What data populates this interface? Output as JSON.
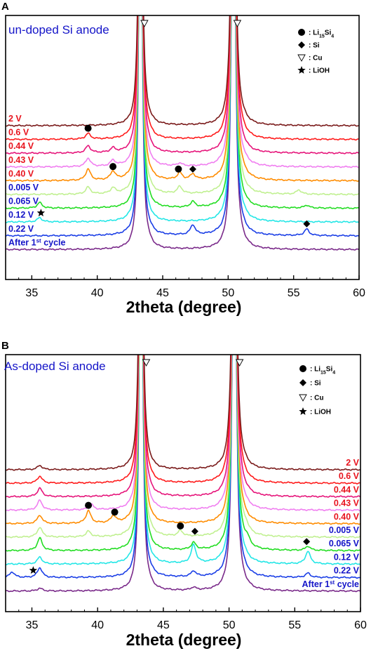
{
  "chart_data": [
    {
      "type": "line",
      "panel": "A",
      "title": "un-doped Si anode",
      "xlabel": "2theta (degree)",
      "ylabel": "",
      "xlim": [
        33,
        60
      ],
      "xticks": [
        35,
        40,
        45,
        50,
        55,
        60
      ],
      "label_side": "left",
      "legend": [
        {
          "symbol": "circle",
          "text": ": Li15Si4",
          "phase": "Li15Si4"
        },
        {
          "symbol": "diamond",
          "text": ": Si",
          "phase": "Si"
        },
        {
          "symbol": "triangle",
          "text": ": Cu",
          "phase": "Cu"
        },
        {
          "symbol": "star",
          "text": ": LiOH",
          "phase": "LiOH"
        }
      ],
      "series": [
        {
          "name": "2 V",
          "color": "#7a1a1a",
          "label_color": "#e8141e",
          "peaks": []
        },
        {
          "name": "0.6 V",
          "color": "#ff1a1a",
          "label_color": "#e8141e",
          "peaks": [
            [
              39.3,
              8
            ]
          ]
        },
        {
          "name": "0.44 V",
          "color": "#e6147a",
          "label_color": "#e8141e",
          "peaks": [
            [
              39.3,
              10
            ],
            [
              41.2,
              6
            ]
          ]
        },
        {
          "name": "0.43 V",
          "color": "#f07ef0",
          "label_color": "#e8141e",
          "peaks": [
            [
              39.3,
              12
            ],
            [
              41.2,
              8
            ],
            [
              46.3,
              4
            ]
          ]
        },
        {
          "name": "0.40 V",
          "color": "#ff8c00",
          "label_color": "#e8141e",
          "peaks": [
            [
              39.3,
              16
            ],
            [
              41.2,
              12
            ],
            [
              46.3,
              10
            ],
            [
              47.3,
              8
            ]
          ]
        },
        {
          "name": "0.005 V",
          "color": "#c0f090",
          "label_color": "#1414c8",
          "peaks": [
            [
              39.3,
              10
            ],
            [
              41.2,
              8
            ],
            [
              46.3,
              10
            ],
            [
              55.4,
              6
            ]
          ]
        },
        {
          "name": "0.065 V",
          "color": "#22dd22",
          "label_color": "#1414c8",
          "peaks": [
            [
              35.6,
              8
            ],
            [
              47.3,
              8
            ],
            [
              56.0,
              4
            ]
          ]
        },
        {
          "name": "0.12 V",
          "color": "#22e6e6",
          "label_color": "#1414c8",
          "peaks": [
            [
              35.6,
              6
            ]
          ]
        },
        {
          "name": "0.22 V",
          "color": "#1a3ee6",
          "label_color": "#1414c8",
          "peaks": [
            [
              47.3,
              14
            ],
            [
              56.0,
              9
            ]
          ]
        },
        {
          "name": "After 1st cycle",
          "color": "#7a2a8a",
          "label_color": "#1414c8",
          "peaks": []
        }
      ],
      "markers": [
        {
          "phase": "Li15Si4",
          "x": 39.3,
          "series": "0.6 V"
        },
        {
          "phase": "Li15Si4",
          "x": 41.2,
          "series": "0.40 V"
        },
        {
          "phase": "Li15Si4",
          "x": 46.2,
          "series": "0.40 V"
        },
        {
          "phase": "Si",
          "x": 47.3,
          "series": "0.40 V"
        },
        {
          "phase": "LiOH",
          "x": 35.7,
          "series": "0.12 V"
        },
        {
          "phase": "Si",
          "x": 56.0,
          "series": "0.22 V"
        },
        {
          "phase": "Cu",
          "x": 43.6,
          "series": "top"
        },
        {
          "phase": "Cu",
          "x": 50.7,
          "series": "top"
        }
      ]
    },
    {
      "type": "line",
      "panel": "B",
      "title": "As-doped Si anode",
      "xlabel": "2theta (degree)",
      "ylabel": "",
      "xlim": [
        33,
        60
      ],
      "xticks": [
        35,
        40,
        45,
        50,
        55,
        60
      ],
      "label_side": "right",
      "legend": [
        {
          "symbol": "circle",
          "text": ": Li15Si4",
          "phase": "Li15Si4"
        },
        {
          "symbol": "diamond",
          "text": ": Si",
          "phase": "Si"
        },
        {
          "symbol": "triangle",
          "text": ": Cu",
          "phase": "Cu"
        },
        {
          "symbol": "star",
          "text": ": LiOH",
          "phase": "LiOH"
        }
      ],
      "series": [
        {
          "name": "2 V",
          "color": "#7a1a1a",
          "label_color": "#e8141e",
          "peaks": [
            [
              35.6,
              6
            ]
          ]
        },
        {
          "name": "0.6 V",
          "color": "#ff1a1a",
          "label_color": "#e8141e",
          "peaks": [
            [
              35.6,
              10
            ]
          ]
        },
        {
          "name": "0.44 V",
          "color": "#e6147a",
          "label_color": "#e8141e",
          "peaks": [
            [
              35.6,
              12
            ]
          ]
        },
        {
          "name": "0.43 V",
          "color": "#f07ef0",
          "label_color": "#e8141e",
          "peaks": [
            [
              35.6,
              14
            ],
            [
              39.5,
              8
            ]
          ]
        },
        {
          "name": "0.40 V",
          "color": "#ff8c00",
          "label_color": "#e8141e",
          "peaks": [
            [
              35.6,
              12
            ],
            [
              39.3,
              18
            ],
            [
              41.2,
              10
            ]
          ]
        },
        {
          "name": "0.005 V",
          "color": "#c0f090",
          "label_color": "#1414c8",
          "peaks": [
            [
              35.6,
              14
            ],
            [
              39.3,
              8
            ],
            [
              46.3,
              8
            ],
            [
              51.3,
              6
            ]
          ]
        },
        {
          "name": "0.065 V",
          "color": "#22dd22",
          "label_color": "#1414c8",
          "peaks": [
            [
              35.6,
              18
            ],
            [
              47.3,
              10
            ],
            [
              51.4,
              8
            ],
            [
              56.0,
              6
            ]
          ]
        },
        {
          "name": "0.12 V",
          "color": "#22e6e6",
          "label_color": "#1414c8",
          "peaks": [
            [
              35.6,
              10
            ],
            [
              47.3,
              26
            ],
            [
              56.0,
              18
            ]
          ]
        },
        {
          "name": "0.22 V",
          "color": "#1a3ee6",
          "label_color": "#1414c8",
          "peaks": [
            [
              33.5,
              8
            ],
            [
              35.6,
              14
            ],
            [
              47.3,
              8
            ],
            [
              56.0,
              6
            ]
          ]
        },
        {
          "name": "After 1st cycle",
          "color": "#7a2a8a",
          "label_color": "#1414c8",
          "peaks": [
            [
              35.6,
              4
            ],
            [
              47.3,
              4
            ]
          ]
        }
      ],
      "markers": [
        {
          "phase": "Li15Si4",
          "x": 39.3,
          "series": "0.40 V"
        },
        {
          "phase": "Li15Si4",
          "x": 41.3,
          "series": "0.40 V"
        },
        {
          "phase": "Li15Si4",
          "x": 46.3,
          "series": "0.005 V"
        },
        {
          "phase": "Si",
          "x": 47.4,
          "series": "0.005 V"
        },
        {
          "phase": "LiOH",
          "x": 35.1,
          "series": "0.22 V"
        },
        {
          "phase": "Si",
          "x": 55.9,
          "series": "0.065 V"
        },
        {
          "phase": "Cu",
          "x": 43.7,
          "series": "top"
        },
        {
          "phase": "Cu",
          "x": 50.8,
          "series": "top"
        }
      ]
    }
  ]
}
